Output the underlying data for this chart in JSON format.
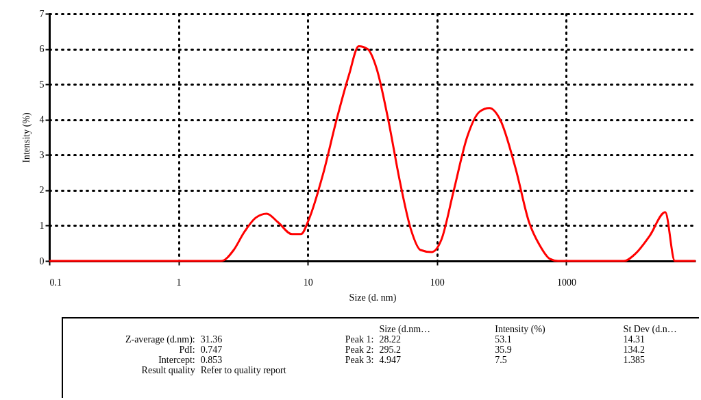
{
  "chart_data": {
    "type": "line",
    "xlabel": "Size (d. nm)",
    "ylabel": "Intensity (%)",
    "log": "x",
    "grid": true,
    "marker": "none",
    "line_style": "solid",
    "xlim": [
      0.1,
      10000
    ],
    "xticks": [
      0.1,
      1,
      10,
      100,
      1000
    ],
    "ylim": [
      0,
      7
    ],
    "yticks": [
      0,
      1,
      2,
      3,
      4,
      5,
      6,
      7
    ],
    "series": [
      {
        "color": "#ff0000",
        "x": [
          0.1,
          2.14,
          2.67,
          3.2,
          3.94,
          4.8,
          5.9,
          7.55,
          8.85,
          10.2,
          13.1,
          16.7,
          20.8,
          24.8,
          29,
          34,
          41.9,
          51.6,
          62.8,
          74.5,
          90.6,
          108,
          134,
          171,
          214,
          254,
          308,
          404,
          516,
          621,
          745,
          863,
          2800,
          3440,
          4400,
          5830,
          6920,
          10000
        ],
        "values": [
          0,
          0,
          0.31,
          0.8,
          1.22,
          1.34,
          1.09,
          0.76,
          0.76,
          1.18,
          2.45,
          4.0,
          5.26,
          6.08,
          6.0,
          5.46,
          4.0,
          2.25,
          0.89,
          0.31,
          0.25,
          0.6,
          1.96,
          3.51,
          4.23,
          4.33,
          4.0,
          2.64,
          1.09,
          0.45,
          0.06,
          0,
          0,
          0.21,
          0.7,
          1.38,
          0,
          0
        ]
      }
    ],
    "annotations": [
      "\t\t\tSize (d.nm…\tIntensity (%)\tSt Dev (d.n…",
      "Z-average (d.nm):\t31.36\tPeak 1:\t28.22\t53.1\t14.31",
      "PdI:\t0.747\tPeak 2:\t295.2\t35.9\t134.2",
      "Intercept:\t0.853\tPeak 3:\t4.947\t7.5\t1.385",
      "Result quality\tRefer to quality report"
    ]
  }
}
